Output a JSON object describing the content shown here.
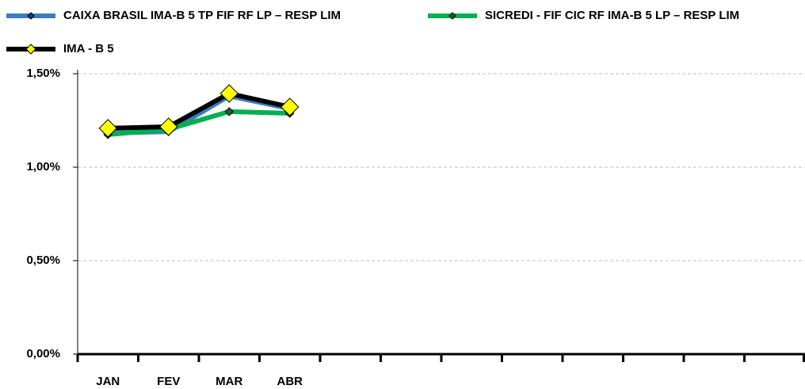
{
  "chart_data": {
    "type": "line",
    "categories": [
      "JAN",
      "FEV",
      "MAR",
      "ABR",
      null,
      null,
      null,
      null,
      null,
      null,
      null,
      null
    ],
    "series": [
      {
        "name": "CAIXA BRASIL IMA-B 5 TP FIF RF LP – RESP LIM",
        "color": "#3a7dc4",
        "marker_color": "#1f3f66",
        "values": [
          1.182,
          1.19,
          1.381,
          1.313,
          null,
          null,
          null,
          null,
          null,
          null,
          null,
          null
        ]
      },
      {
        "name": "SICREDI - FIF CIC RF IMA-B 5 LP – RESP LIM",
        "color": "#00b050",
        "marker_color": "#1f5f33",
        "values": [
          1.174,
          1.203,
          1.297,
          1.288,
          null,
          null,
          null,
          null,
          null,
          null,
          null,
          null
        ]
      },
      {
        "name": "IMA - B 5",
        "color": "#000000",
        "marker_color": "#ffff00",
        "values": [
          1.208,
          1.216,
          1.394,
          1.322,
          null,
          null,
          null,
          null,
          null,
          null,
          null,
          null
        ]
      }
    ],
    "ylim": [
      0,
      1.5
    ],
    "yticks": [
      {
        "value": 0,
        "label": "0,00%"
      },
      {
        "value": 0.5,
        "label": "0,50%"
      },
      {
        "value": 1,
        "label": "1,00%"
      },
      {
        "value": 1.5,
        "label": "1,50%"
      }
    ],
    "grid": true
  }
}
